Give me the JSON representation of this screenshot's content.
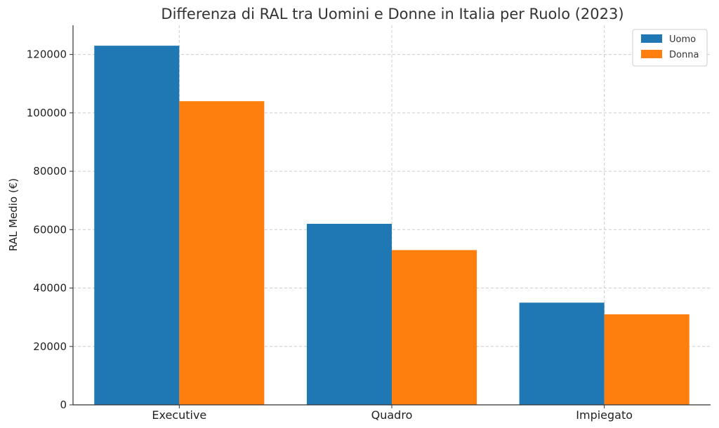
{
  "chart_data": {
    "type": "bar",
    "title": "Differenza di RAL tra Uomini e Donne in Italia per Ruolo (2023)",
    "xlabel": "",
    "ylabel": "RAL Medio (€)",
    "categories": [
      "Executive",
      "Quadro",
      "Impiegato"
    ],
    "series": [
      {
        "name": "Uomo",
        "values": [
          123000,
          62000,
          35000
        ],
        "color": "#1f77b4"
      },
      {
        "name": "Donna",
        "values": [
          104000,
          53000,
          31000
        ],
        "color": "#ff7f0e"
      }
    ],
    "ylim": [
      0,
      130000
    ],
    "yticks": [
      "0",
      "20000",
      "40000",
      "60000",
      "80000",
      "100000",
      "120000"
    ],
    "grid": true,
    "legend_position": "top-right"
  }
}
